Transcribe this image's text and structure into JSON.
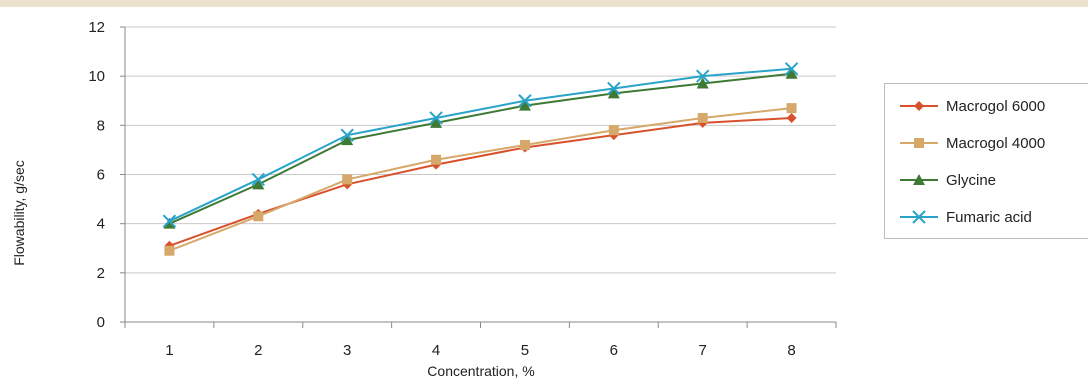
{
  "chart_data": {
    "type": "line",
    "title": "",
    "xlabel": "Concentration, %",
    "ylabel": "Flowability, g/sec",
    "x": [
      1,
      2,
      3,
      4,
      5,
      6,
      7,
      8
    ],
    "x_tick_labels": [
      "1",
      "2",
      "3",
      "4",
      "5",
      "6",
      "7",
      "8"
    ],
    "ylim": [
      0,
      12
    ],
    "y_ticks": [
      0,
      2,
      4,
      6,
      8,
      10,
      12
    ],
    "y_tick_labels": [
      "0",
      "2",
      "4",
      "6",
      "8",
      "10",
      "12"
    ],
    "grid": "horizontal",
    "legend_position": "right",
    "series": [
      {
        "name": "Macrogol 6000",
        "color": "#d9512c",
        "marker": "diamond",
        "values": [
          3.1,
          4.4,
          5.6,
          6.4,
          7.1,
          7.6,
          8.1,
          8.3
        ]
      },
      {
        "name": "Macrogol 4000",
        "color": "#d6a86a",
        "marker": "square",
        "values": [
          2.9,
          4.3,
          5.8,
          6.6,
          7.2,
          7.8,
          8.3,
          8.7
        ]
      },
      {
        "name": "Glycine",
        "color": "#3f7a35",
        "marker": "triangle",
        "values": [
          4.0,
          5.6,
          7.4,
          8.1,
          8.8,
          9.3,
          9.7,
          10.1
        ]
      },
      {
        "name": "Fumaric acid",
        "color": "#2aa3c9",
        "marker": "x",
        "values": [
          4.1,
          5.8,
          7.6,
          8.3,
          9.0,
          9.5,
          10.0,
          10.3
        ]
      }
    ]
  }
}
